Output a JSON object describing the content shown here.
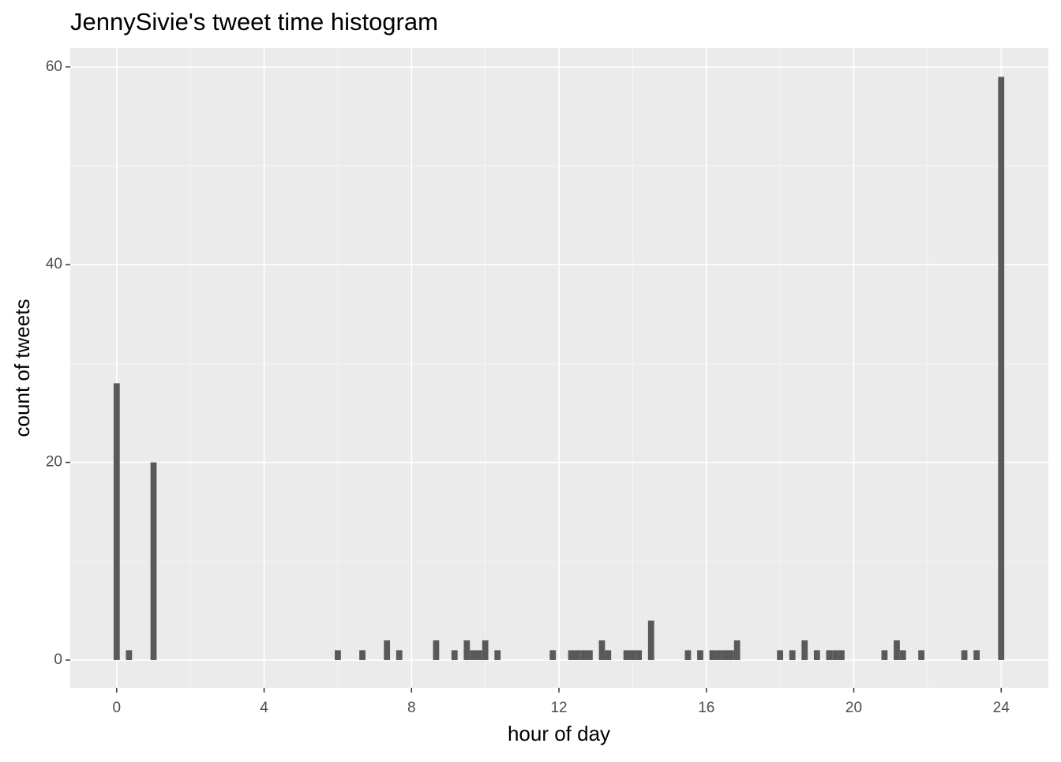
{
  "chart_data": {
    "type": "histogram",
    "title": "JennySivie's tweet time histogram",
    "x_label": "hour of day",
    "y_label": "count of tweets",
    "color": "#595959",
    "bins": [
      -0.0833,
      0.0833,
      0.25,
      0.4167,
      0.5833,
      0.75,
      0.9167,
      1.0833,
      1.25,
      1.4167,
      1.5833,
      1.75,
      1.9167,
      2.0833,
      2.25,
      2.4167,
      2.5833,
      2.75,
      2.9167,
      3.0833,
      3.25,
      3.4167,
      3.5833,
      3.75,
      3.9167,
      4.0833,
      4.25,
      4.4167,
      4.5833,
      4.75,
      4.9167,
      5.0833,
      5.25,
      5.4167,
      5.5833,
      5.75,
      5.9167,
      6.0833,
      6.25,
      6.4167,
      6.5833,
      6.75,
      6.9167,
      7.0833,
      7.25,
      7.4167,
      7.5833,
      7.75,
      7.9167,
      8.0833,
      8.25,
      8.4167,
      8.5833,
      8.75,
      8.9167,
      9.0833,
      9.25,
      9.4167,
      9.5833,
      9.75,
      9.9167,
      10.0833,
      10.25,
      10.4167,
      10.5833,
      10.75,
      10.9167,
      11.0833,
      11.25,
      11.4167,
      11.5833,
      11.75,
      11.9167,
      12.0833,
      12.25,
      12.4167,
      12.5833,
      12.75,
      12.9167,
      13.0833,
      13.25,
      13.4167,
      13.5833,
      13.75,
      13.9167,
      14.0833,
      14.25,
      14.4167,
      14.5833,
      14.75,
      14.9167,
      15.0833,
      15.25,
      15.4167,
      15.5833,
      15.75,
      15.9167,
      16.0833,
      16.25,
      16.4167,
      16.5833,
      16.75,
      16.9167,
      17.0833,
      17.25,
      17.4167,
      17.5833,
      17.75,
      17.9167,
      18.0833,
      18.25,
      18.4167,
      18.5833,
      18.75,
      18.9167,
      19.0833,
      19.25,
      19.4167,
      19.5833,
      19.75,
      19.9167,
      20.0833,
      20.25,
      20.4167,
      20.5833,
      20.75,
      20.9167,
      21.0833,
      21.25,
      21.4167,
      21.5833,
      21.75,
      21.9167,
      22.0833,
      22.25,
      22.4167,
      22.5833,
      22.75,
      22.9167,
      23.0833,
      23.25,
      23.4167,
      23.5833,
      23.75,
      23.9167,
      24.0833
    ],
    "values": [
      28,
      0,
      1,
      0,
      0,
      0,
      20,
      0,
      0,
      0,
      0,
      0,
      0,
      0,
      0,
      0,
      0,
      0,
      0,
      0,
      0,
      0,
      0,
      0,
      0,
      0,
      0,
      0,
      0,
      0,
      0,
      0,
      0,
      0,
      0,
      0,
      1,
      0,
      0,
      0,
      1,
      0,
      0,
      0,
      2,
      0,
      1,
      0,
      0,
      0,
      0,
      0,
      2,
      0,
      0,
      1,
      0,
      2,
      1,
      1,
      2,
      0,
      1,
      0,
      0,
      0,
      0,
      0,
      0,
      0,
      0,
      1,
      0,
      0,
      1,
      1,
      1,
      1,
      0,
      2,
      1,
      0,
      0,
      1,
      1,
      1,
      0,
      4,
      0,
      0,
      0,
      0,
      0,
      1,
      0,
      1,
      0,
      1,
      1,
      1,
      1,
      2,
      0,
      0,
      0,
      0,
      0,
      0,
      1,
      0,
      1,
      0,
      2,
      0,
      1,
      0,
      1,
      1,
      1,
      0,
      0,
      0,
      0,
      0,
      0,
      1,
      0,
      2,
      1,
      0,
      0,
      1,
      0,
      0,
      0,
      0,
      0,
      0,
      1,
      0,
      1,
      0,
      0,
      0,
      59
    ],
    "xlim": [
      -1.26,
      25.28
    ],
    "ylim": [
      -2.8,
      61.9
    ],
    "xticks": [
      0,
      4,
      8,
      12,
      16,
      20,
      24
    ],
    "yticks": [
      0,
      20,
      40,
      60
    ],
    "grid": true
  }
}
